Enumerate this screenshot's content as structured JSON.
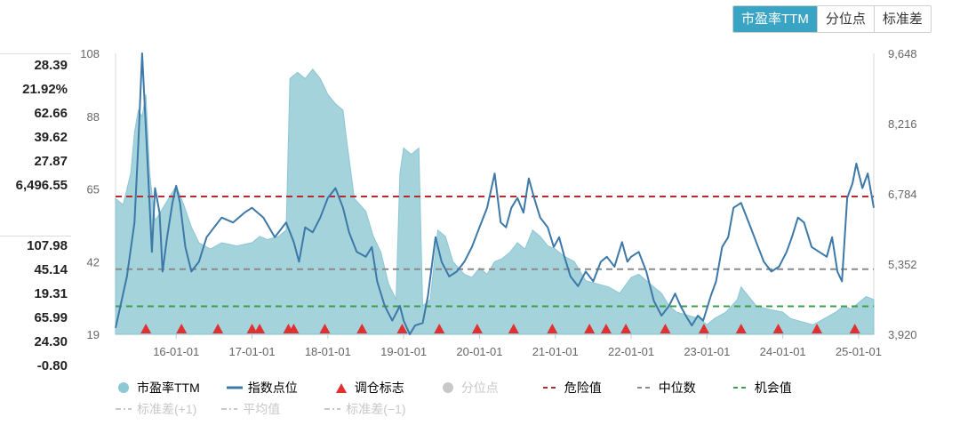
{
  "tabs": [
    {
      "label": "市盈率TTM",
      "active": true
    },
    {
      "label": "分位点",
      "active": false
    },
    {
      "label": "标准差",
      "active": false
    }
  ],
  "stats_top": [
    "28.39",
    "21.92%",
    "62.66",
    "39.62",
    "27.87",
    "6,496.55"
  ],
  "stats_bottom": [
    "107.98",
    "45.14",
    "19.31",
    "65.99",
    "24.30",
    "-0.80"
  ],
  "chart_data": {
    "type": "area",
    "x_ticks": [
      "16-01-01",
      "17-01-01",
      "18-01-01",
      "19-01-01",
      "20-01-01",
      "21-01-01",
      "22-01-01",
      "23-01-01",
      "24-01-01",
      "25-01-01"
    ],
    "y_left_ticks": [
      "108",
      "88",
      "65",
      "42",
      "19"
    ],
    "y_right_ticks": [
      "9,648",
      "8,216",
      "6,784",
      "5,352",
      "3,920"
    ],
    "y_left_range": [
      19,
      108
    ],
    "y_right_range": [
      3920,
      9648
    ],
    "x_range": [
      2015.2,
      2025.2
    ],
    "reference_lines": {
      "danger": 62.66,
      "median": 39.62,
      "opportunity": 27.87
    },
    "pe_ttm": [
      [
        2015.2,
        62
      ],
      [
        2015.3,
        60
      ],
      [
        2015.4,
        70
      ],
      [
        2015.45,
        83
      ],
      [
        2015.5,
        90
      ],
      [
        2015.55,
        88
      ],
      [
        2015.6,
        95
      ],
      [
        2015.65,
        70
      ],
      [
        2015.72,
        55
      ],
      [
        2015.8,
        58
      ],
      [
        2015.9,
        62
      ],
      [
        2016.0,
        66
      ],
      [
        2016.1,
        60
      ],
      [
        2016.2,
        53
      ],
      [
        2016.3,
        48
      ],
      [
        2016.45,
        46
      ],
      [
        2016.6,
        48
      ],
      [
        2016.8,
        47
      ],
      [
        2017.0,
        48
      ],
      [
        2017.1,
        50
      ],
      [
        2017.2,
        49
      ],
      [
        2017.35,
        50
      ],
      [
        2017.45,
        52
      ],
      [
        2017.5,
        100
      ],
      [
        2017.6,
        102
      ],
      [
        2017.7,
        100
      ],
      [
        2017.8,
        103
      ],
      [
        2017.9,
        100
      ],
      [
        2018.0,
        95
      ],
      [
        2018.1,
        92
      ],
      [
        2018.2,
        90
      ],
      [
        2018.25,
        80
      ],
      [
        2018.35,
        62
      ],
      [
        2018.5,
        58
      ],
      [
        2018.6,
        50
      ],
      [
        2018.7,
        45
      ],
      [
        2018.8,
        35
      ],
      [
        2018.9,
        30
      ],
      [
        2018.95,
        70
      ],
      [
        2019.0,
        78
      ],
      [
        2019.1,
        76
      ],
      [
        2019.2,
        78
      ],
      [
        2019.25,
        28
      ],
      [
        2019.35,
        30
      ],
      [
        2019.45,
        52
      ],
      [
        2019.55,
        50
      ],
      [
        2019.65,
        42
      ],
      [
        2019.8,
        38
      ],
      [
        2019.9,
        37
      ],
      [
        2020.0,
        40
      ],
      [
        2020.1,
        38
      ],
      [
        2020.2,
        42
      ],
      [
        2020.3,
        43
      ],
      [
        2020.4,
        45
      ],
      [
        2020.5,
        48
      ],
      [
        2020.6,
        46
      ],
      [
        2020.7,
        52
      ],
      [
        2020.8,
        50
      ],
      [
        2020.9,
        47
      ],
      [
        2021.0,
        46
      ],
      [
        2021.1,
        44
      ],
      [
        2021.25,
        42
      ],
      [
        2021.4,
        36
      ],
      [
        2021.55,
        35
      ],
      [
        2021.7,
        34
      ],
      [
        2021.85,
        32
      ],
      [
        2022.0,
        37
      ],
      [
        2022.1,
        38
      ],
      [
        2022.25,
        35
      ],
      [
        2022.4,
        32
      ],
      [
        2022.5,
        28
      ],
      [
        2022.6,
        26
      ],
      [
        2022.75,
        25
      ],
      [
        2022.9,
        24
      ],
      [
        2023.0,
        22
      ],
      [
        2023.1,
        24
      ],
      [
        2023.25,
        26
      ],
      [
        2023.4,
        30
      ],
      [
        2023.45,
        34
      ],
      [
        2023.55,
        31
      ],
      [
        2023.65,
        28
      ],
      [
        2023.8,
        27
      ],
      [
        2024.0,
        26
      ],
      [
        2024.1,
        24
      ],
      [
        2024.25,
        23
      ],
      [
        2024.4,
        22
      ],
      [
        2024.55,
        24
      ],
      [
        2024.7,
        26
      ],
      [
        2024.8,
        28
      ],
      [
        2024.9,
        27
      ],
      [
        2025.0,
        29
      ],
      [
        2025.1,
        31
      ],
      [
        2025.2,
        30
      ]
    ],
    "index_points": [
      [
        2015.2,
        4050
      ],
      [
        2015.25,
        4400
      ],
      [
        2015.35,
        5100
      ],
      [
        2015.45,
        6200
      ],
      [
        2015.5,
        7800
      ],
      [
        2015.55,
        9648
      ],
      [
        2015.62,
        7500
      ],
      [
        2015.68,
        5600
      ],
      [
        2015.72,
        6900
      ],
      [
        2015.78,
        6400
      ],
      [
        2015.82,
        5200
      ],
      [
        2015.88,
        5900
      ],
      [
        2015.95,
        6600
      ],
      [
        2016.0,
        6950
      ],
      [
        2016.05,
        6600
      ],
      [
        2016.12,
        5700
      ],
      [
        2016.2,
        5200
      ],
      [
        2016.3,
        5400
      ],
      [
        2016.4,
        5900
      ],
      [
        2016.5,
        6100
      ],
      [
        2016.6,
        6300
      ],
      [
        2016.75,
        6200
      ],
      [
        2016.9,
        6400
      ],
      [
        2017.0,
        6500
      ],
      [
        2017.15,
        6300
      ],
      [
        2017.3,
        5900
      ],
      [
        2017.45,
        6200
      ],
      [
        2017.55,
        5800
      ],
      [
        2017.62,
        5400
      ],
      [
        2017.7,
        6100
      ],
      [
        2017.8,
        6000
      ],
      [
        2017.9,
        6300
      ],
      [
        2018.0,
        6700
      ],
      [
        2018.1,
        6900
      ],
      [
        2018.2,
        6500
      ],
      [
        2018.28,
        6000
      ],
      [
        2018.38,
        5600
      ],
      [
        2018.5,
        5500
      ],
      [
        2018.58,
        5700
      ],
      [
        2018.65,
        5000
      ],
      [
        2018.75,
        4500
      ],
      [
        2018.85,
        4200
      ],
      [
        2018.95,
        4500
      ],
      [
        2019.0,
        4200
      ],
      [
        2019.08,
        3920
      ],
      [
        2019.15,
        4100
      ],
      [
        2019.25,
        4150
      ],
      [
        2019.32,
        4700
      ],
      [
        2019.42,
        5900
      ],
      [
        2019.5,
        5400
      ],
      [
        2019.6,
        5100
      ],
      [
        2019.7,
        5200
      ],
      [
        2019.8,
        5400
      ],
      [
        2019.9,
        5700
      ],
      [
        2020.0,
        6100
      ],
      [
        2020.1,
        6500
      ],
      [
        2020.2,
        7200
      ],
      [
        2020.28,
        6200
      ],
      [
        2020.35,
        6100
      ],
      [
        2020.42,
        6500
      ],
      [
        2020.5,
        6700
      ],
      [
        2020.58,
        6400
      ],
      [
        2020.65,
        7100
      ],
      [
        2020.72,
        6700
      ],
      [
        2020.8,
        6300
      ],
      [
        2020.9,
        6100
      ],
      [
        2020.98,
        5700
      ],
      [
        2021.05,
        5900
      ],
      [
        2021.12,
        5500
      ],
      [
        2021.2,
        5100
      ],
      [
        2021.3,
        4900
      ],
      [
        2021.4,
        5200
      ],
      [
        2021.5,
        5000
      ],
      [
        2021.6,
        5400
      ],
      [
        2021.68,
        5500
      ],
      [
        2021.78,
        5300
      ],
      [
        2021.88,
        5800
      ],
      [
        2021.95,
        5400
      ],
      [
        2022.0,
        5500
      ],
      [
        2022.1,
        5600
      ],
      [
        2022.2,
        5200
      ],
      [
        2022.3,
        4600
      ],
      [
        2022.4,
        4300
      ],
      [
        2022.5,
        4500
      ],
      [
        2022.58,
        4750
      ],
      [
        2022.65,
        4500
      ],
      [
        2022.72,
        4300
      ],
      [
        2022.8,
        4100
      ],
      [
        2022.88,
        4300
      ],
      [
        2022.95,
        4200
      ],
      [
        2023.05,
        4700
      ],
      [
        2023.12,
        5000
      ],
      [
        2023.2,
        5700
      ],
      [
        2023.28,
        5900
      ],
      [
        2023.35,
        6500
      ],
      [
        2023.45,
        6600
      ],
      [
        2023.55,
        6200
      ],
      [
        2023.65,
        5800
      ],
      [
        2023.75,
        5400
      ],
      [
        2023.85,
        5200
      ],
      [
        2023.95,
        5300
      ],
      [
        2024.05,
        5600
      ],
      [
        2024.12,
        5900
      ],
      [
        2024.2,
        6300
      ],
      [
        2024.28,
        6200
      ],
      [
        2024.38,
        5700
      ],
      [
        2024.48,
        5600
      ],
      [
        2024.58,
        5500
      ],
      [
        2024.65,
        5900
      ],
      [
        2024.72,
        5200
      ],
      [
        2024.78,
        5000
      ],
      [
        2024.85,
        6700
      ],
      [
        2024.92,
        7000
      ],
      [
        2024.97,
        7400
      ],
      [
        2025.05,
        6900
      ],
      [
        2025.12,
        7200
      ],
      [
        2025.2,
        6500
      ]
    ],
    "rebalance_markers": [
      2015.6,
      2016.07,
      2016.55,
      2017.0,
      2017.1,
      2017.48,
      2017.55,
      2017.96,
      2018.45,
      2018.98,
      2019.47,
      2019.97,
      2020.45,
      2020.96,
      2021.45,
      2021.67,
      2021.93,
      2022.45,
      2022.96,
      2023.45,
      2023.94,
      2024.45,
      2024.95
    ]
  },
  "legend": {
    "row1": [
      {
        "label": "市盈率TTM",
        "marker": "circle",
        "color": "#8ec8d4",
        "disabled": false
      },
      {
        "label": "指数点位",
        "marker": "line",
        "color": "#3c78a8",
        "disabled": false
      },
      {
        "label": "调仓标志",
        "marker": "triangle",
        "color": "#e03030",
        "disabled": false
      },
      {
        "label": "分位点",
        "marker": "circle",
        "color": "#c8c8c8",
        "disabled": true
      },
      {
        "label": "危险值",
        "marker": "dash",
        "color": "#b52a2a",
        "disabled": false
      },
      {
        "label": "中位数",
        "marker": "dash",
        "color": "#8a8a8a",
        "disabled": false
      },
      {
        "label": "机会值",
        "marker": "dash",
        "color": "#3e9e4e",
        "disabled": false
      }
    ],
    "row2": [
      {
        "label": "标准差(+1)",
        "marker": "dashdot",
        "color": "#c8c8c8",
        "disabled": true
      },
      {
        "label": "平均值",
        "marker": "dashdot",
        "color": "#c8c8c8",
        "disabled": true
      },
      {
        "label": "标准差(−1)",
        "marker": "dashdot",
        "color": "#c8c8c8",
        "disabled": true
      }
    ]
  },
  "colors": {
    "area": "#9ccfd9",
    "area_stroke": "#7fc0cf",
    "index_line": "#3c78a8",
    "danger": "#b52a2a",
    "median": "#8a8a8a",
    "opportunity": "#3e9e4e",
    "marker": "#e03030",
    "tab_active": "#3aa4c4"
  }
}
